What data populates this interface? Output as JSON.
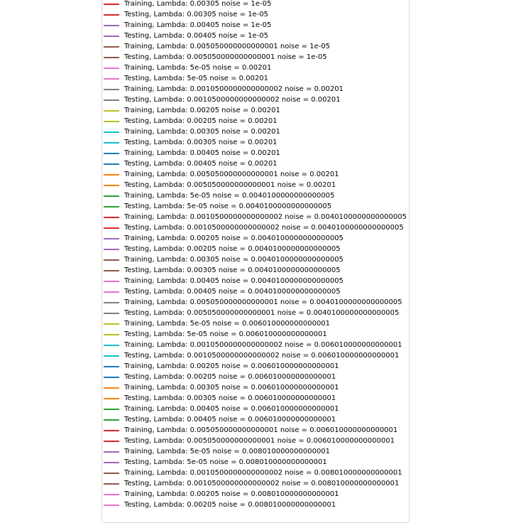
{
  "chart_data": {
    "type": "line",
    "legend_placement": "partial view, legend only",
    "legend": [
      {
        "label": "Training, Lambda: 0.00305 noise = 1e-05",
        "color": "#d62728"
      },
      {
        "label": "Testing, Lambda: 0.00305 noise = 1e-05",
        "color": "#d62728"
      },
      {
        "label": "Training, Lambda: 0.00405 noise = 1e-05",
        "color": "#9467bd"
      },
      {
        "label": "Testing, Lambda: 0.00405 noise = 1e-05",
        "color": "#9467bd"
      },
      {
        "label": "Training, Lambda: 0.005050000000000001 noise = 1e-05",
        "color": "#8c564b"
      },
      {
        "label": "Testing, Lambda: 0.005050000000000001 noise = 1e-05",
        "color": "#8c564b"
      },
      {
        "label": "Training, Lambda: 5e-05 noise = 0.00201",
        "color": "#e377c2"
      },
      {
        "label": "Testing, Lambda: 5e-05 noise = 0.00201",
        "color": "#e377c2"
      },
      {
        "label": "Training, Lambda: 0.0010500000000000002 noise = 0.00201",
        "color": "#7f7f7f"
      },
      {
        "label": "Testing, Lambda: 0.0010500000000000002 noise = 0.00201",
        "color": "#7f7f7f"
      },
      {
        "label": "Training, Lambda: 0.00205 noise = 0.00201",
        "color": "#bcbd22"
      },
      {
        "label": "Testing, Lambda: 0.00205 noise = 0.00201",
        "color": "#bcbd22"
      },
      {
        "label": "Training, Lambda: 0.00305 noise = 0.00201",
        "color": "#17becf"
      },
      {
        "label": "Testing, Lambda: 0.00305 noise = 0.00201",
        "color": "#17becf"
      },
      {
        "label": "Training, Lambda: 0.00405 noise = 0.00201",
        "color": "#1f77b4"
      },
      {
        "label": "Testing, Lambda: 0.00405 noise = 0.00201",
        "color": "#1f77b4"
      },
      {
        "label": "Training, Lambda: 0.005050000000000001 noise = 0.00201",
        "color": "#ff7f0e"
      },
      {
        "label": "Testing, Lambda: 0.005050000000000001 noise = 0.00201",
        "color": "#ff7f0e"
      },
      {
        "label": "Training, Lambda: 5e-05 noise = 0.0040100000000000005",
        "color": "#2ca02c"
      },
      {
        "label": "Testing, Lambda: 5e-05 noise = 0.0040100000000000005",
        "color": "#2ca02c"
      },
      {
        "label": "Training, Lambda: 0.0010500000000000002 noise = 0.0040100000000000005",
        "color": "#d62728"
      },
      {
        "label": "Testing, Lambda: 0.0010500000000000002 noise = 0.0040100000000000005",
        "color": "#d62728"
      },
      {
        "label": "Training, Lambda: 0.00205 noise = 0.0040100000000000005",
        "color": "#9467bd"
      },
      {
        "label": "Testing, Lambda: 0.00205 noise = 0.0040100000000000005",
        "color": "#9467bd"
      },
      {
        "label": "Training, Lambda: 0.00305 noise = 0.0040100000000000005",
        "color": "#8c564b"
      },
      {
        "label": "Testing, Lambda: 0.00305 noise = 0.0040100000000000005",
        "color": "#8c564b"
      },
      {
        "label": "Training, Lambda: 0.00405 noise = 0.0040100000000000005",
        "color": "#e377c2"
      },
      {
        "label": "Testing, Lambda: 0.00405 noise = 0.0040100000000000005",
        "color": "#e377c2"
      },
      {
        "label": "Training, Lambda: 0.005050000000000001 noise = 0.0040100000000000005",
        "color": "#7f7f7f"
      },
      {
        "label": "Testing, Lambda: 0.005050000000000001 noise = 0.0040100000000000005",
        "color": "#7f7f7f"
      },
      {
        "label": "Training, Lambda: 5e-05 noise = 0.006010000000000001",
        "color": "#bcbd22"
      },
      {
        "label": "Testing, Lambda: 5e-05 noise = 0.006010000000000001",
        "color": "#bcbd22"
      },
      {
        "label": "Training, Lambda: 0.0010500000000000002 noise = 0.006010000000000001",
        "color": "#17becf"
      },
      {
        "label": "Testing, Lambda: 0.0010500000000000002 noise = 0.006010000000000001",
        "color": "#17becf"
      },
      {
        "label": "Training, Lambda: 0.00205 noise = 0.006010000000000001",
        "color": "#1f77b4"
      },
      {
        "label": "Testing, Lambda: 0.00205 noise = 0.006010000000000001",
        "color": "#1f77b4"
      },
      {
        "label": "Training, Lambda: 0.00305 noise = 0.006010000000000001",
        "color": "#ff7f0e"
      },
      {
        "label": "Testing, Lambda: 0.00305 noise = 0.006010000000000001",
        "color": "#ff7f0e"
      },
      {
        "label": "Training, Lambda: 0.00405 noise = 0.006010000000000001",
        "color": "#2ca02c"
      },
      {
        "label": "Testing, Lambda: 0.00405 noise = 0.006010000000000001",
        "color": "#2ca02c"
      },
      {
        "label": "Training, Lambda: 0.005050000000000001 noise = 0.006010000000000001",
        "color": "#d62728"
      },
      {
        "label": "Testing, Lambda: 0.005050000000000001 noise = 0.006010000000000001",
        "color": "#d62728"
      },
      {
        "label": "Training, Lambda: 5e-05 noise = 0.008010000000000001",
        "color": "#9467bd"
      },
      {
        "label": "Testing, Lambda: 5e-05 noise = 0.008010000000000001",
        "color": "#9467bd"
      },
      {
        "label": "Training, Lambda: 0.0010500000000000002 noise = 0.008010000000000001",
        "color": "#8c564b"
      },
      {
        "label": "Testing, Lambda: 0.0010500000000000002 noise = 0.008010000000000001",
        "color": "#8c564b"
      },
      {
        "label": "Training, Lambda: 0.00205 noise = 0.008010000000000001",
        "color": "#e377c2"
      },
      {
        "label": "Testing, Lambda: 0.00205 noise = 0.008010000000000001",
        "color": "#e377c2"
      }
    ]
  }
}
